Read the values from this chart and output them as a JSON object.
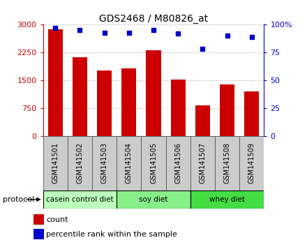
{
  "title": "GDS2468 / M80826_at",
  "samples": [
    "GSM141501",
    "GSM141502",
    "GSM141503",
    "GSM141504",
    "GSM141505",
    "GSM141506",
    "GSM141507",
    "GSM141508",
    "GSM141509"
  ],
  "counts": [
    2880,
    2130,
    1760,
    1820,
    2310,
    1520,
    830,
    1390,
    1200
  ],
  "percentile_ranks": [
    97,
    95,
    93,
    93,
    95,
    92,
    78,
    90,
    89
  ],
  "groups": [
    {
      "label": "casein control diet",
      "start": 0,
      "end": 3,
      "color": "#bbffbb"
    },
    {
      "label": "soy diet",
      "start": 3,
      "end": 6,
      "color": "#88ee88"
    },
    {
      "label": "whey diet",
      "start": 6,
      "end": 9,
      "color": "#44dd44"
    }
  ],
  "bar_color": "#cc0000",
  "dot_color": "#0000cc",
  "ylim_left": [
    0,
    3000
  ],
  "ylim_right": [
    0,
    100
  ],
  "yticks_left": [
    0,
    750,
    1500,
    2250,
    3000
  ],
  "yticks_right": [
    0,
    25,
    50,
    75,
    100
  ],
  "ytick_labels_right": [
    "0",
    "25",
    "50",
    "75",
    "100%"
  ],
  "grid_color": "#aaaaaa",
  "tick_label_color_left": "#cc0000",
  "tick_label_color_right": "#0000cc",
  "xtick_bg_color": "#cccccc",
  "xtick_border_color": "#555555",
  "legend_items": [
    {
      "label": "count",
      "color": "#cc0000"
    },
    {
      "label": "percentile rank within the sample",
      "color": "#0000cc"
    }
  ],
  "protocol_label": "protocol"
}
